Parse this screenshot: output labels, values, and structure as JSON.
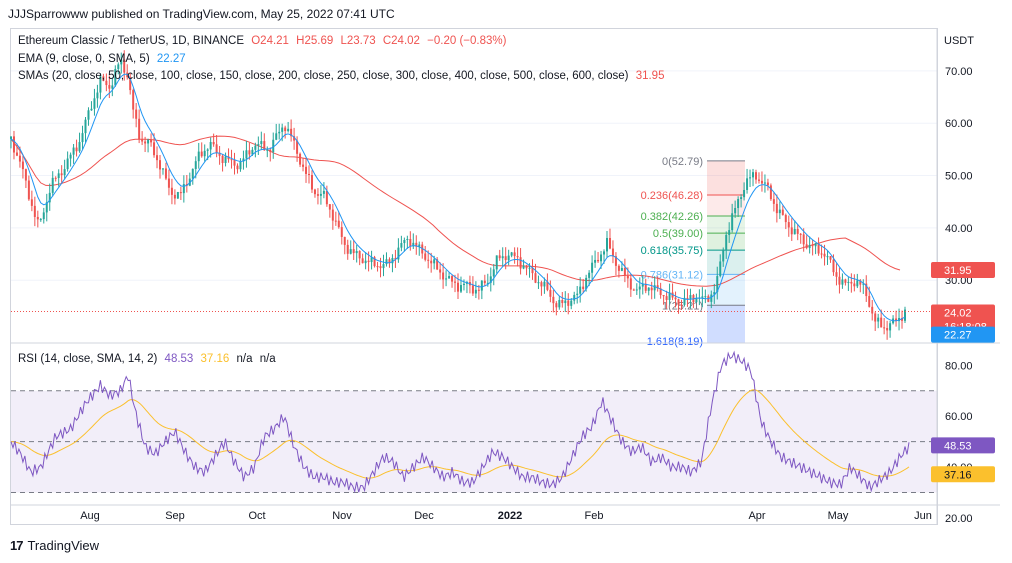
{
  "header": {
    "text": "JJJSparrowww published on TradingView.com, May 25, 2022 07:41 UTC"
  },
  "legend": {
    "title": "Ethereum Classic / TetherUS, 1D, BINANCE",
    "o": "O24.21",
    "h": "H25.69",
    "l": "L23.73",
    "c": "C24.02",
    "chg": "−0.20 (−0.83%)",
    "ema_label": "EMA (9, close, 0, SMA, 5)",
    "ema_value": "22.27",
    "sma_label": "SMAs (20, close, 50, close, 100, close, 150, close, 200, close, 250, close, 300, close, 400, close, 500, close, 600, close)",
    "sma_value": "31.95",
    "rsi_label": "RSI (14, close, SMA, 14, 2)",
    "rsi_value": "48.53",
    "rsi_sma_value": "37.16",
    "rsi_na1": "n/a",
    "rsi_na2": "n/a"
  },
  "axis": {
    "currency": "USDT"
  },
  "badges": {
    "sma": "31.95",
    "price": "24.02",
    "countdown": "16:18:08",
    "ema": "22.27",
    "rsi": "48.53",
    "rsi_sma": "37.16"
  },
  "fib": [
    "0(52.79)",
    "0.236(46.28)",
    "0.382(42.26)",
    "0.5(39.00)",
    "0.618(35.75)",
    "0.786(31.12)",
    "1(25.21)",
    "1.618(8.19)"
  ],
  "colors": {
    "up": "#26a69a",
    "down": "#ef5350",
    "ema": "#2196f3",
    "sma": "#ef5350",
    "rsi": "#7e57c2",
    "rsi_sma": "#fbc02d"
  },
  "footer": {
    "brand": "TradingView"
  },
  "chart_data": [
    {
      "type": "candlestick",
      "title": "Ethereum Classic / TetherUS, 1D, BINANCE",
      "ylim": [
        18,
        78
      ],
      "y_ticks": [
        30,
        40,
        50,
        60,
        70
      ],
      "x_ticks": [
        "Aug",
        "Sep",
        "Oct",
        "Nov",
        "Dec",
        "2022",
        "Feb",
        "Apr",
        "May",
        "Jun"
      ],
      "close_anchors": [
        [
          0,
          57
        ],
        [
          10,
          52
        ],
        [
          20,
          45
        ],
        [
          28,
          40
        ],
        [
          40,
          48
        ],
        [
          55,
          52
        ],
        [
          70,
          57
        ],
        [
          80,
          63
        ],
        [
          90,
          68
        ],
        [
          100,
          67
        ],
        [
          110,
          72
        ],
        [
          118,
          69
        ],
        [
          122,
          63
        ],
        [
          130,
          57
        ],
        [
          140,
          56
        ],
        [
          150,
          52
        ],
        [
          160,
          47
        ],
        [
          170,
          46
        ],
        [
          180,
          50
        ],
        [
          190,
          54
        ],
        [
          200,
          56
        ],
        [
          215,
          53
        ],
        [
          230,
          52
        ],
        [
          245,
          56
        ],
        [
          260,
          55
        ],
        [
          275,
          60
        ],
        [
          285,
          56
        ],
        [
          295,
          51
        ],
        [
          305,
          47
        ],
        [
          315,
          46
        ],
        [
          325,
          42
        ],
        [
          335,
          37
        ],
        [
          345,
          35
        ],
        [
          355,
          34
        ],
        [
          365,
          33
        ],
        [
          380,
          33
        ],
        [
          390,
          36
        ],
        [
          400,
          38
        ],
        [
          410,
          36
        ],
        [
          420,
          34
        ],
        [
          430,
          32
        ],
        [
          440,
          30
        ],
        [
          450,
          29
        ],
        [
          460,
          29
        ],
        [
          470,
          28
        ],
        [
          480,
          30
        ],
        [
          490,
          34
        ],
        [
          500,
          35
        ],
        [
          510,
          34
        ],
        [
          520,
          32
        ],
        [
          530,
          30
        ],
        [
          540,
          28
        ],
        [
          550,
          25
        ],
        [
          560,
          26
        ],
        [
          570,
          27
        ],
        [
          580,
          31
        ],
        [
          590,
          34
        ],
        [
          600,
          37
        ],
        [
          610,
          33
        ],
        [
          620,
          30
        ],
        [
          630,
          28
        ],
        [
          640,
          29
        ],
        [
          650,
          28
        ],
        [
          660,
          27
        ],
        [
          670,
          26
        ],
        [
          680,
          26
        ],
        [
          690,
          27
        ],
        [
          700,
          26
        ],
        [
          710,
          29
        ],
        [
          720,
          39
        ],
        [
          730,
          44
        ],
        [
          740,
          49
        ],
        [
          750,
          50
        ],
        [
          760,
          48
        ],
        [
          770,
          44
        ],
        [
          780,
          41
        ],
        [
          790,
          39
        ],
        [
          800,
          37
        ],
        [
          810,
          36
        ],
        [
          820,
          35
        ],
        [
          830,
          31
        ],
        [
          840,
          29
        ],
        [
          850,
          30
        ],
        [
          860,
          28
        ],
        [
          870,
          22
        ],
        [
          880,
          21
        ],
        [
          890,
          22
        ],
        [
          900,
          24
        ]
      ],
      "ema_last": 22.27,
      "sma_last": 31.95,
      "last_price": 24.02
    },
    {
      "type": "line",
      "title": "RSI (14, close, SMA, 14, 2)",
      "ylim": [
        18,
        88
      ],
      "y_ticks": [
        20,
        40,
        60,
        80
      ],
      "bands": [
        30,
        50,
        70
      ],
      "rsi_anchors": [
        [
          0,
          50
        ],
        [
          10,
          45
        ],
        [
          20,
          38
        ],
        [
          30,
          40
        ],
        [
          45,
          52
        ],
        [
          60,
          55
        ],
        [
          75,
          65
        ],
        [
          90,
          72
        ],
        [
          100,
          68
        ],
        [
          110,
          70
        ],
        [
          118,
          76
        ],
        [
          125,
          62
        ],
        [
          135,
          48
        ],
        [
          145,
          45
        ],
        [
          155,
          50
        ],
        [
          165,
          54
        ],
        [
          175,
          46
        ],
        [
          185,
          40
        ],
        [
          195,
          38
        ],
        [
          205,
          44
        ],
        [
          215,
          50
        ],
        [
          225,
          42
        ],
        [
          235,
          36
        ],
        [
          245,
          40
        ],
        [
          255,
          52
        ],
        [
          265,
          55
        ],
        [
          275,
          60
        ],
        [
          285,
          48
        ],
        [
          295,
          40
        ],
        [
          305,
          36
        ],
        [
          315,
          36
        ],
        [
          325,
          34
        ],
        [
          335,
          34
        ],
        [
          345,
          32
        ],
        [
          355,
          32
        ],
        [
          365,
          38
        ],
        [
          375,
          44
        ],
        [
          385,
          42
        ],
        [
          395,
          36
        ],
        [
          405,
          40
        ],
        [
          415,
          44
        ],
        [
          425,
          40
        ],
        [
          435,
          36
        ],
        [
          445,
          38
        ],
        [
          455,
          34
        ],
        [
          465,
          34
        ],
        [
          475,
          40
        ],
        [
          485,
          46
        ],
        [
          495,
          44
        ],
        [
          505,
          40
        ],
        [
          515,
          36
        ],
        [
          525,
          36
        ],
        [
          535,
          34
        ],
        [
          545,
          33
        ],
        [
          555,
          36
        ],
        [
          565,
          44
        ],
        [
          575,
          52
        ],
        [
          585,
          56
        ],
        [
          595,
          66
        ],
        [
          605,
          58
        ],
        [
          615,
          50
        ],
        [
          625,
          46
        ],
        [
          635,
          48
        ],
        [
          645,
          42
        ],
        [
          655,
          44
        ],
        [
          665,
          40
        ],
        [
          675,
          40
        ],
        [
          685,
          38
        ],
        [
          695,
          42
        ],
        [
          705,
          64
        ],
        [
          715,
          80
        ],
        [
          725,
          84
        ],
        [
          735,
          82
        ],
        [
          745,
          78
        ],
        [
          755,
          58
        ],
        [
          765,
          50
        ],
        [
          775,
          44
        ],
        [
          785,
          42
        ],
        [
          795,
          40
        ],
        [
          805,
          38
        ],
        [
          815,
          36
        ],
        [
          825,
          34
        ],
        [
          835,
          33
        ],
        [
          845,
          40
        ],
        [
          855,
          36
        ],
        [
          865,
          32
        ],
        [
          875,
          35
        ],
        [
          885,
          38
        ],
        [
          895,
          44
        ],
        [
          905,
          48.53
        ]
      ],
      "rsi_last": 48.53,
      "sma_last": 37.16
    }
  ]
}
